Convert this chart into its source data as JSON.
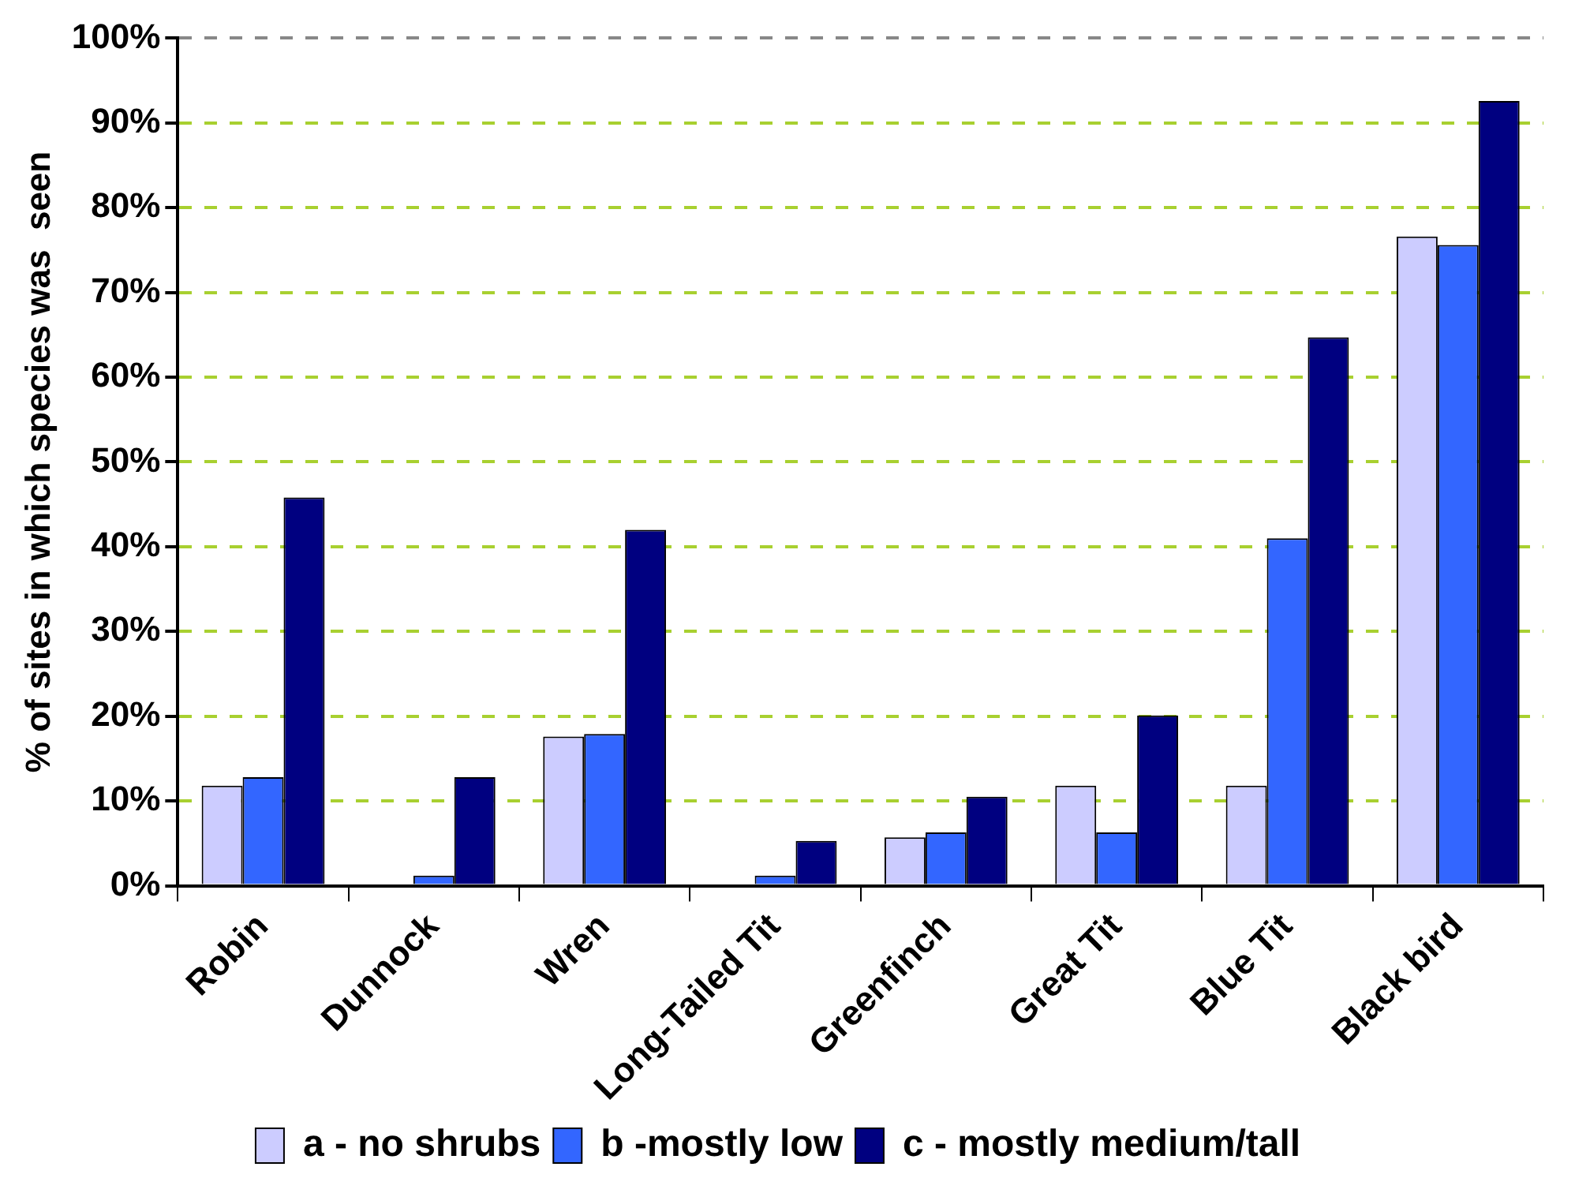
{
  "chart_data": {
    "type": "bar",
    "ylabel": "% of sites in which species was  seen",
    "categories": [
      "Robin",
      "Dunnock",
      "Wren",
      "Long-Tailed Tit",
      "Greenfinch",
      "Great Tit",
      "Blue Tit",
      "Black bird"
    ],
    "series": [
      {
        "name": "a - no shrubs",
        "color": "#ccccff",
        "values": [
          11.8,
          0,
          17.6,
          0,
          5.7,
          11.8,
          11.8,
          76.6
        ]
      },
      {
        "name": "b -mostly low",
        "color": "#3366ff",
        "values": [
          12.8,
          1.2,
          17.9,
          1.2,
          6.3,
          6.3,
          41,
          75.6
        ]
      },
      {
        "name": "c - mostly medium/tall",
        "color": "#000080",
        "values": [
          45.8,
          12.8,
          42,
          5.3,
          10.5,
          20.1,
          64.7,
          92.6
        ]
      }
    ],
    "ylim": [
      0,
      100
    ],
    "yticks": [
      {
        "value": 0,
        "label": "0%"
      },
      {
        "value": 10,
        "label": "10%"
      },
      {
        "value": 20,
        "label": "20%"
      },
      {
        "value": 30,
        "label": "30%"
      },
      {
        "value": 40,
        "label": "40%"
      },
      {
        "value": 50,
        "label": "50%"
      },
      {
        "value": 60,
        "label": "60%"
      },
      {
        "value": 70,
        "label": "70%"
      },
      {
        "value": 80,
        "label": "80%"
      },
      {
        "value": 90,
        "label": "90%"
      },
      {
        "value": 100,
        "label": "100%"
      }
    ],
    "grid": "y",
    "legend": "bottom"
  }
}
